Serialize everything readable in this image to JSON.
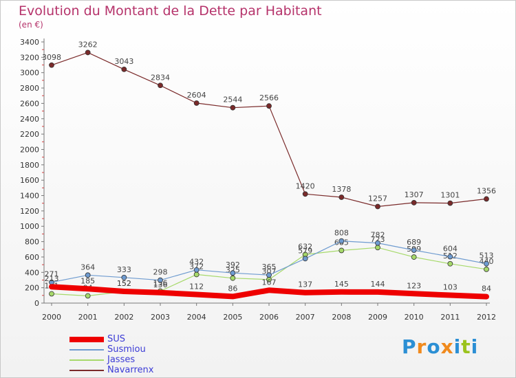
{
  "header": {
    "title": "Evolution du Montant de la Dette par Habitant",
    "subtitle": "(en €)"
  },
  "logo": {
    "letters": [
      "P",
      "r",
      "o",
      "x",
      "i",
      "t",
      "i"
    ],
    "colors": [
      "#2b8fd4",
      "#f08a1d",
      "#2b8fd4",
      "#f08a1d",
      "#2b8fd4",
      "#9bc31d",
      "#2b8fd4"
    ]
  },
  "chart_data": {
    "type": "line",
    "title": "Evolution du Montant de la Dette par Habitant",
    "subtitle": "(en €)",
    "xlabel": "",
    "ylabel": "",
    "x": [
      "2000",
      "2001",
      "2002",
      "2003",
      "2004",
      "2005",
      "2006",
      "2007",
      "2008",
      "2009",
      "2010",
      "2011",
      "2012"
    ],
    "ylim": [
      0,
      3400
    ],
    "yticks": [
      0,
      200,
      400,
      600,
      800,
      1000,
      1200,
      1400,
      1600,
      1800,
      2000,
      2200,
      2400,
      2600,
      2800,
      3000,
      3200,
      3400
    ],
    "grid": false,
    "legend_position": "bottom-left",
    "series": [
      {
        "name": "Navarrenx",
        "color": "#7a2a2a",
        "width": 1.2,
        "values": [
          3098,
          3262,
          3043,
          2834,
          2604,
          2544,
          2566,
          1420,
          1378,
          1257,
          1307,
          1301,
          1356
        ]
      },
      {
        "name": "Jasses",
        "color": "#a6d96a",
        "width": 1.2,
        "values": [
          121,
          94,
          152,
          156,
          372,
          325,
          307,
          632,
          685,
          723,
          599,
          512,
          440
        ]
      },
      {
        "name": "Susmiou",
        "color": "#6e9bd0",
        "width": 1.2,
        "values": [
          271,
          364,
          333,
          298,
          432,
          392,
          365,
          579,
          808,
          782,
          689,
          604,
          513
        ]
      },
      {
        "name": "SUS",
        "color": "#ee0000",
        "width": 8,
        "values": [
          213,
          185,
          152,
          136,
          112,
          86,
          167,
          137,
          145,
          144,
          123,
          103,
          84
        ]
      }
    ],
    "legend": [
      "SUS",
      "Susmiou",
      "Jasses",
      "Navarrenx"
    ]
  }
}
